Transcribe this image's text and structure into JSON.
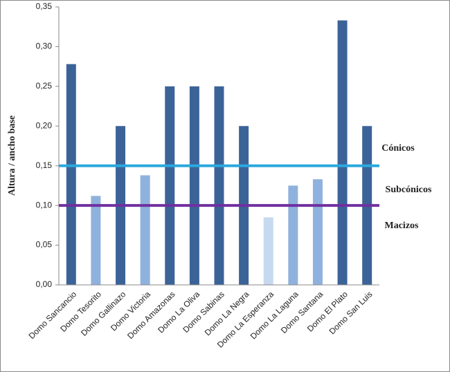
{
  "chart_data": {
    "type": "bar",
    "y_label": "Altura / ancho base",
    "categories": [
      "Domo Sancancio",
      "Domo Tesorito",
      "Domo Gallinazo",
      "Domo Victoria",
      "Domo Amazonas",
      "Domo La Oliva",
      "Domo Sabinas",
      "Domo La Negra",
      "Domo La Esperanza",
      "Domo La Laguna",
      "Domo Santana",
      "Domo El Plato",
      "Domo San Luis"
    ],
    "values": [
      0.278,
      0.112,
      0.2,
      0.138,
      0.25,
      0.25,
      0.25,
      0.2,
      0.085,
      0.125,
      0.133,
      0.333,
      0.2
    ],
    "colors": [
      "#3c6398",
      "#8fb1dd",
      "#3c6398",
      "#8fb1dd",
      "#3c6398",
      "#3c6398",
      "#3c6398",
      "#3c6398",
      "#c6d9ef",
      "#8fb1dd",
      "#8fb1dd",
      "#3c6398",
      "#3c6398"
    ],
    "ylim": [
      0,
      0.35
    ],
    "yticks": [
      {
        "value": 0,
        "label": "0,00"
      },
      {
        "value": 0.05,
        "label": "0,05"
      },
      {
        "value": 0.1,
        "label": "0,10"
      },
      {
        "value": 0.15,
        "label": "0,15"
      },
      {
        "value": 0.2,
        "label": "0,20"
      },
      {
        "value": 0.25,
        "label": "0,25"
      },
      {
        "value": 0.3,
        "label": "0,30"
      },
      {
        "value": 0.35,
        "label": "0,35"
      }
    ],
    "grid": false,
    "reference_lines": [
      {
        "value": 0.15,
        "color": "#2ba8de"
      },
      {
        "value": 0.1,
        "color": "#7030a0"
      }
    ],
    "annotations": [
      "Cónicos",
      "Subcónicos",
      "Macizos"
    ]
  }
}
